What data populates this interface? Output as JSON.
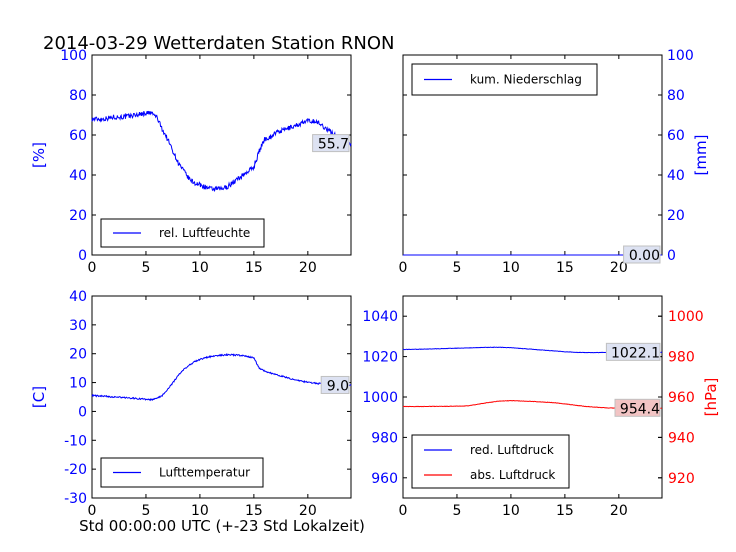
{
  "figure_title": "2014-03-29 Wetterdaten Station RNON",
  "footer_xlabel": "Std 00:00:00 UTC (+-23 Std Lokalzeit)",
  "colors": {
    "blue": "#0000ff",
    "red": "#ff0000",
    "black": "#000000",
    "label_bg_blue": "#dde2f2",
    "label_bg_red": "#f2c4c4"
  },
  "chart_data": [
    {
      "id": "humidity",
      "type": "line",
      "title": "",
      "xlabel": "",
      "ylabel": "[%]",
      "xlim": [
        0,
        24
      ],
      "ylim": [
        0,
        100
      ],
      "xticks": [
        0,
        5,
        10,
        15,
        20
      ],
      "yticks": [
        0,
        20,
        40,
        60,
        80,
        100
      ],
      "ytick_color": "blue",
      "legend": "bottom-left",
      "last_value_label": "55.7",
      "series": [
        {
          "name": "rel. Luftfeuchte",
          "color": "blue",
          "noise": 1.2,
          "x": [
            0,
            1,
            2,
            3,
            4,
            5,
            5.5,
            6,
            6.5,
            7,
            7.5,
            8,
            8.5,
            9,
            9.5,
            10,
            10.5,
            11,
            11.5,
            12,
            12.5,
            13,
            13.5,
            14,
            14.5,
            15,
            15.5,
            16,
            16.5,
            17,
            17.5,
            18,
            18.5,
            19,
            19.5,
            20,
            20.5,
            21,
            21.5,
            22,
            22.5,
            23,
            23.5,
            24
          ],
          "y": [
            68,
            68,
            69,
            69,
            70,
            71,
            71,
            69,
            63,
            58,
            52,
            46,
            42,
            38,
            36,
            35,
            34,
            33,
            33,
            33,
            34,
            36,
            38,
            40,
            42,
            44,
            52,
            58,
            59,
            61,
            62,
            63,
            64,
            65,
            66,
            67,
            67,
            66,
            64,
            62,
            60,
            58,
            56,
            55.7
          ]
        }
      ]
    },
    {
      "id": "precipitation",
      "type": "line",
      "title": "",
      "xlabel": "",
      "ylabel": "[mm]",
      "xlim": [
        0,
        24
      ],
      "ylim": [
        0,
        100
      ],
      "xticks": [
        0,
        5,
        10,
        15,
        20
      ],
      "yticks": [
        0,
        20,
        40,
        60,
        80,
        100
      ],
      "ytick_color": "blue",
      "yaxis_side": "right",
      "legend": "top-left",
      "last_value_label": "0.00",
      "series": [
        {
          "name": "kum. Niederschlag",
          "color": "blue",
          "noise": 0,
          "x": [
            0,
            24
          ],
          "y": [
            0,
            0
          ]
        }
      ]
    },
    {
      "id": "temperature",
      "type": "line",
      "title": "",
      "xlabel": "Std 00:00:00 UTC (+-23 Std Lokalzeit)",
      "ylabel": "[C]",
      "xlim": [
        0,
        24
      ],
      "ylim": [
        -30,
        40
      ],
      "xticks": [
        0,
        5,
        10,
        15,
        20
      ],
      "yticks": [
        -30,
        -20,
        -10,
        0,
        10,
        20,
        30,
        40
      ],
      "ytick_color": "blue",
      "legend": "bottom-left",
      "last_value_label": "9.0",
      "series": [
        {
          "name": "Lufttemperatur",
          "color": "blue",
          "noise": 0.25,
          "x": [
            0,
            1,
            2,
            3,
            4,
            5,
            5.5,
            6,
            6.5,
            7,
            7.5,
            8,
            8.5,
            9,
            9.5,
            10,
            10.5,
            11,
            11.5,
            12,
            12.5,
            13,
            13.5,
            14,
            14.5,
            15,
            15.5,
            16,
            16.5,
            17,
            17.5,
            18,
            18.5,
            19,
            19.5,
            20,
            20.5,
            21,
            21.5,
            22,
            22.5,
            23,
            23.5,
            24
          ],
          "y": [
            5.5,
            5.3,
            5.0,
            4.8,
            4.5,
            4.2,
            4.0,
            4.5,
            5.5,
            7.5,
            10,
            12.5,
            14.5,
            16,
            17.2,
            18,
            18.6,
            19,
            19.3,
            19.5,
            19.6,
            19.6,
            19.5,
            19.3,
            19,
            18.5,
            15,
            14,
            13.4,
            12.8,
            12.3,
            11.8,
            11.2,
            10.8,
            10.4,
            10.1,
            9.9,
            9.7,
            9.5,
            9.4,
            9.3,
            9.2,
            9.1,
            9.0
          ]
        }
      ]
    },
    {
      "id": "pressure",
      "type": "line",
      "title": "",
      "xlabel": "",
      "ylabel": "",
      "ylabel_right": "[hPa]",
      "xlim": [
        0,
        24
      ],
      "ylim": [
        950,
        1050
      ],
      "ylim_right": [
        910,
        1010
      ],
      "xticks": [
        0,
        5,
        10,
        15,
        20
      ],
      "yticks": [
        960,
        980,
        1000,
        1020,
        1040
      ],
      "yticks_right": [
        920,
        940,
        960,
        980,
        1000
      ],
      "ytick_color": "blue",
      "ytick_color_right": "red",
      "legend": "bottom-left",
      "last_value_label": "1022.1",
      "last_value_label_right": "954.4",
      "series": [
        {
          "name": "red. Luftdruck",
          "color": "blue",
          "axis": "left",
          "noise": 0.1,
          "x": [
            0,
            2,
            4,
            6,
            8,
            9,
            10,
            11,
            12,
            13,
            14,
            15,
            16,
            17,
            18,
            19,
            20,
            21,
            22,
            23,
            24
          ],
          "y": [
            1023.5,
            1023.7,
            1024.0,
            1024.3,
            1024.6,
            1024.6,
            1024.4,
            1024.0,
            1023.6,
            1023.2,
            1022.8,
            1022.4,
            1022.1,
            1022.0,
            1022.0,
            1022.1,
            1022.2,
            1022.2,
            1022.1,
            1022.1,
            1022.1
          ]
        },
        {
          "name": "abs. Luftdruck",
          "color": "red",
          "axis": "right",
          "noise": 0.1,
          "x": [
            0,
            2,
            4,
            6,
            7,
            8,
            9,
            10,
            11,
            12,
            13,
            14,
            15,
            16,
            17,
            18,
            19,
            20,
            21,
            22,
            23,
            24
          ],
          "y": [
            955.3,
            955.3,
            955.4,
            955.6,
            956.5,
            957.3,
            958.0,
            958.2,
            958.0,
            957.8,
            957.5,
            957.2,
            956.6,
            955.9,
            955.3,
            954.9,
            954.6,
            954.5,
            954.4,
            954.4,
            954.4,
            954.4
          ]
        }
      ]
    }
  ]
}
